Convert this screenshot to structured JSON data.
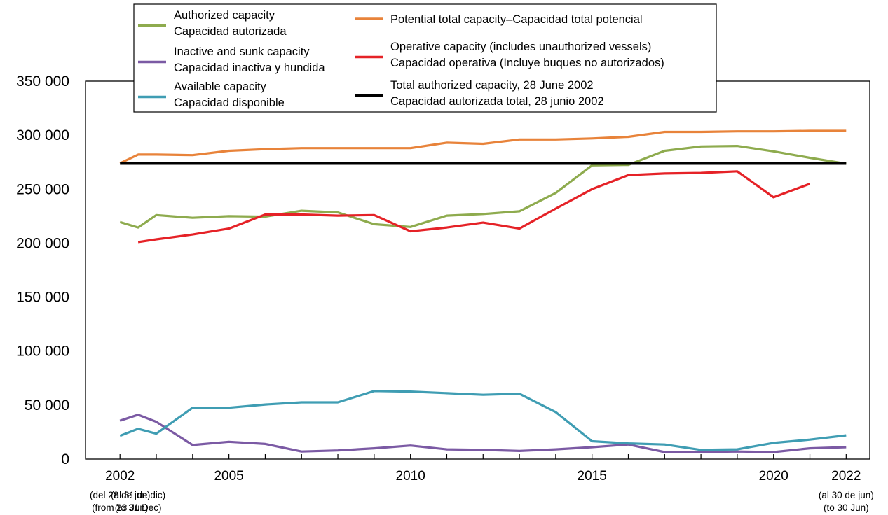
{
  "chart_data": {
    "type": "line",
    "x": [
      2002,
      2002.5,
      2003,
      2004,
      2005,
      2006,
      2007,
      2008,
      2009,
      2010,
      2011,
      2012,
      2013,
      2014,
      2015,
      2016,
      2017,
      2018,
      2019,
      2020,
      2021,
      2022
    ],
    "xlim": [
      2001.05,
      2022.65
    ],
    "ylim": [
      0,
      350000
    ],
    "yticks": [
      {
        "value": 0,
        "label": "0"
      },
      {
        "value": 50000,
        "label": "50 000"
      },
      {
        "value": 100000,
        "label": "100 000"
      },
      {
        "value": 150000,
        "label": "150 000"
      },
      {
        "value": 200000,
        "label": "200 000"
      },
      {
        "value": 250000,
        "label": "250 000"
      },
      {
        "value": 300000,
        "label": "300 000"
      },
      {
        "value": 350000,
        "label": "350 000"
      }
    ],
    "xticks": [
      2002,
      2003,
      2004,
      2005,
      2006,
      2007,
      2008,
      2009,
      2010,
      2011,
      2012,
      2013,
      2014,
      2015,
      2016,
      2017,
      2018,
      2019,
      2020,
      2021,
      2022
    ],
    "xticklabels": [
      {
        "value": 2002,
        "label": "2002"
      },
      {
        "value": 2005,
        "label": "2005"
      },
      {
        "value": 2010,
        "label": "2010"
      },
      {
        "value": 2015,
        "label": "2015"
      },
      {
        "value": 2020,
        "label": "2020"
      },
      {
        "value": 2022,
        "label": "2022"
      }
    ],
    "xnotes": [
      {
        "value": 2002,
        "lines": [
          "(del 28 de jun)",
          "(from 28 Jun)"
        ]
      },
      {
        "value": 2002.5,
        "lines": [
          "(al 31 de dic)",
          "(to 31 Dec)"
        ]
      },
      {
        "value": 2022,
        "lines": [
          "(al 30 de jun)",
          "(to 30 Jun)"
        ]
      }
    ],
    "series": [
      {
        "name": "Potential total capacity–Capacidad total potencial",
        "color": "#e8833a",
        "values": [
          274000,
          282000,
          282000,
          281500,
          285500,
          287000,
          288000,
          288000,
          288000,
          288000,
          293000,
          292000,
          296000,
          296000,
          297000,
          298500,
          303000,
          303000,
          303500,
          303500,
          304000,
          304000
        ]
      },
      {
        "name": "Authorized capacity / Capacidad autorizada",
        "color": "#8eab4e",
        "values": [
          219500,
          214500,
          226000,
          223500,
          225000,
          224500,
          230000,
          228500,
          217500,
          215000,
          225500,
          227000,
          229500,
          246500,
          272000,
          272500,
          285500,
          289500,
          290000,
          285000,
          279000,
          273500
        ]
      },
      {
        "name": "Operative capacity (includes unauthorized vessels) / Capacidad operativa (Incluye buques no autorizados)",
        "color": "#e52227",
        "values": [
          null,
          201000,
          203500,
          208000,
          213500,
          226500,
          226500,
          225500,
          226000,
          211000,
          214500,
          219000,
          213500,
          232000,
          250000,
          263000,
          264500,
          265000,
          266500,
          242500,
          255000,
          null
        ]
      },
      {
        "name": "Inactive and sunk capacity / Capacidad inactiva y hundida",
        "color": "#7b5aa4",
        "values": [
          35500,
          41000,
          34500,
          13000,
          16000,
          14000,
          7000,
          8000,
          10000,
          12500,
          9000,
          8500,
          7500,
          9000,
          11000,
          13500,
          6500,
          6500,
          7000,
          6500,
          10000,
          11000
        ]
      },
      {
        "name": "Available capacity / Capacidad disponible",
        "color": "#3f9db3",
        "values": [
          21500,
          28000,
          23500,
          47500,
          47500,
          50500,
          52500,
          52500,
          63000,
          62500,
          61000,
          59500,
          60500,
          43500,
          16500,
          14500,
          13500,
          8500,
          9000,
          15000,
          18000,
          22000
        ]
      }
    ],
    "reference_line": {
      "name": "Total authorized capacity, 28 June 2002 / Capacidad autorizada total, 28 junio 2002",
      "value": 274000,
      "color": "#000000",
      "x_range": [
        2002,
        2022
      ]
    },
    "legend": {
      "position": "top-center",
      "entries": [
        {
          "color": "#8eab4e",
          "lines": [
            "Authorized capacity",
            "Capacidad autorizada"
          ]
        },
        {
          "color": "#7b5aa4",
          "lines": [
            "Inactive and sunk capacity",
            "Capacidad inactiva y hundida"
          ]
        },
        {
          "color": "#3f9db3",
          "lines": [
            "Available capacity",
            "Capacidad disponible"
          ]
        },
        {
          "color": "#e8833a",
          "lines": [
            "Potential total capacity–Capacidad total potencial"
          ]
        },
        {
          "color": "#e52227",
          "lines": [
            "Operative capacity (includes unauthorized vessels)",
            "Capacidad operativa (Incluye buques no autorizados)"
          ]
        },
        {
          "color": "#000000",
          "lines": [
            "Total authorized capacity, 28 June 2002",
            "Capacidad autorizada total, 28 junio 2002"
          ]
        }
      ]
    }
  }
}
